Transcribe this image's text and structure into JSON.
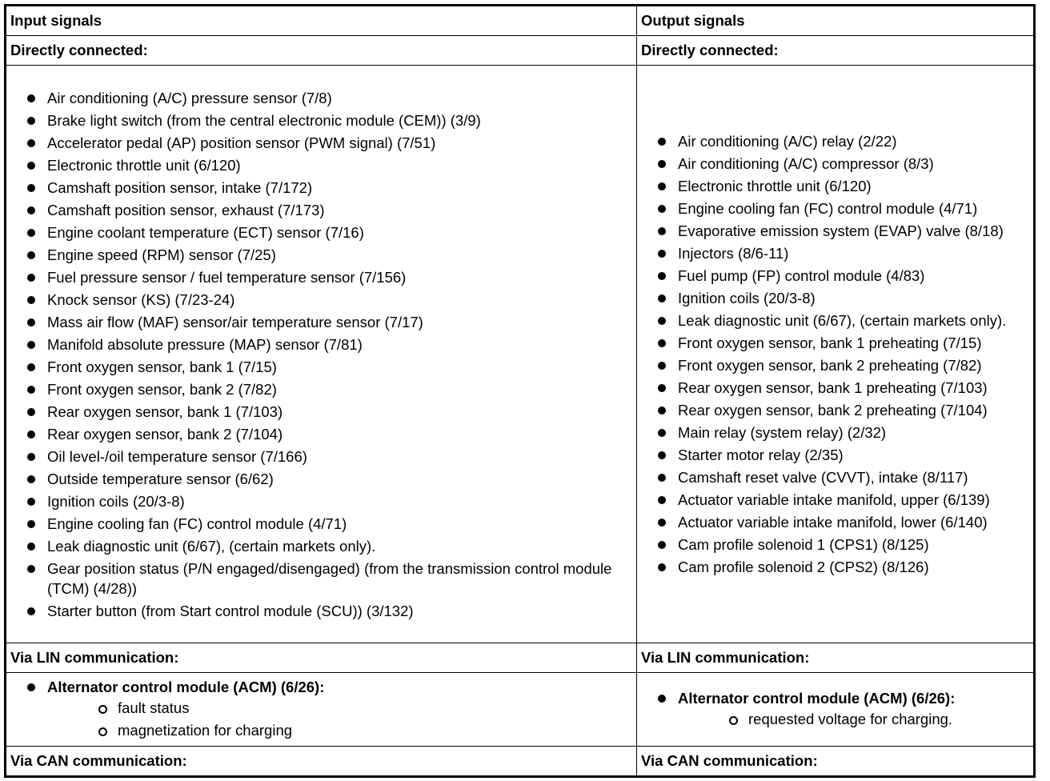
{
  "headers": {
    "input": "Input signals",
    "output": "Output signals"
  },
  "sections": {
    "direct": "Directly connected:",
    "lin": "Via LIN communication:",
    "can": "Via CAN communication:"
  },
  "input_direct": [
    "Air conditioning (A/C) pressure sensor (7/8)",
    "Brake light switch (from the central electronic module (CEM)) (3/9)",
    "Accelerator pedal (AP) position sensor (PWM signal) (7/51)",
    "Electronic throttle unit (6/120)",
    "Camshaft position sensor, intake (7/172)",
    "Camshaft position sensor, exhaust (7/173)",
    "Engine coolant temperature (ECT) sensor (7/16)",
    "Engine speed (RPM) sensor (7/25)",
    "Fuel pressure sensor / fuel temperature sensor (7/156)",
    "Knock sensor (KS) (7/23-24)",
    "Mass air flow (MAF) sensor/air temperature sensor (7/17)",
    "Manifold absolute pressure (MAP) sensor (7/81)",
    "Front oxygen sensor, bank 1 (7/15)",
    "Front oxygen sensor, bank 2 (7/82)",
    "Rear oxygen sensor, bank 1 (7/103)",
    "Rear oxygen sensor, bank 2 (7/104)",
    "Oil level-/oil temperature sensor (7/166)",
    "Outside temperature sensor (6/62)",
    "Ignition coils (20/3-8)",
    "Engine cooling fan (FC) control module (4/71)",
    "Leak diagnostic unit (6/67), (certain markets only).",
    "Gear position status (P/N engaged/disengaged) (from the transmission control module (TCM) (4/28))",
    "Starter button (from Start control module (SCU)) (3/132)"
  ],
  "output_direct": [
    "Air conditioning (A/C) relay (2/22)",
    "Air conditioning (A/C) compressor (8/3)",
    "Electronic throttle unit (6/120)",
    "Engine cooling fan (FC) control module (4/71)",
    "Evaporative emission system (EVAP) valve (8/18)",
    "Injectors (8/6-11)",
    "Fuel pump (FP) control module (4/83)",
    "Ignition coils (20/3-8)",
    "Leak diagnostic unit (6/67), (certain markets only).",
    "Front oxygen sensor, bank 1 preheating (7/15)",
    "Front oxygen sensor, bank 2 preheating (7/82)",
    "Rear oxygen sensor, bank 1 preheating (7/103)",
    "Rear oxygen sensor, bank 2 preheating (7/104)",
    "Main relay (system relay) (2/32)",
    "Starter motor relay (2/35)",
    "Camshaft reset valve (CVVT), intake (8/117)",
    "Actuator variable intake manifold, upper (6/139)",
    "Actuator variable intake manifold, lower (6/140)",
    "Cam profile solenoid 1 (CPS1) (8/125)",
    "Cam profile solenoid 2 (CPS2) (8/126)"
  ],
  "input_lin": {
    "title": "Alternator control module (ACM) (6/26):",
    "items": [
      "fault status",
      "magnetization for charging"
    ]
  },
  "output_lin": {
    "title": "Alternator control module (ACM) (6/26):",
    "items": [
      "requested voltage for charging."
    ]
  }
}
